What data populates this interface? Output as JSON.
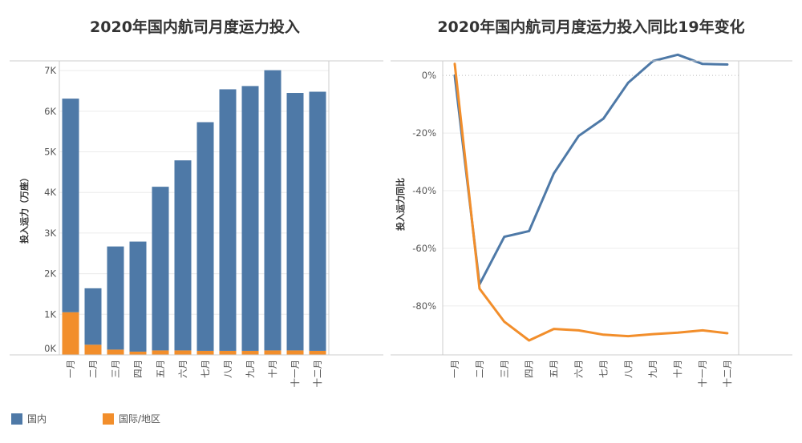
{
  "colors": {
    "domestic": "#4e79a7",
    "international": "#f28e2b",
    "grid": "#ececec",
    "axis": "#cccccc"
  },
  "legend": {
    "domestic": "国内",
    "international": "国际/地区"
  },
  "chart_data": [
    {
      "type": "bar",
      "stacked": true,
      "title": "2020年国内航司月度运力投入",
      "ylabel": "投入运力（万座）",
      "ylim": [
        0,
        7200
      ],
      "yticks": [
        0,
        1000,
        2000,
        3000,
        4000,
        5000,
        6000,
        7000
      ],
      "ytick_labels": [
        "0K",
        "1K",
        "2K",
        "3K",
        "4K",
        "5K",
        "6K",
        "7K"
      ],
      "categories": [
        "一月",
        "二月",
        "三月",
        "四月",
        "五月",
        "六月",
        "七月",
        "八月",
        "九月",
        "十月",
        "十一月",
        "十二月"
      ],
      "series": [
        {
          "name": "国际/地区",
          "values": [
            1050,
            250,
            130,
            80,
            110,
            110,
            100,
            100,
            100,
            110,
            110,
            100
          ]
        },
        {
          "name": "国内",
          "values": [
            5260,
            1390,
            2540,
            2710,
            4030,
            4680,
            5630,
            6440,
            6520,
            6900,
            6340,
            6380
          ]
        }
      ],
      "grid": true
    },
    {
      "type": "line",
      "title": "2020年国内航司月度运力投入同比19年变化",
      "ylabel": "投入运力同比",
      "ylim": [
        -0.97,
        0.045
      ],
      "yticks": [
        0,
        -0.2,
        -0.4,
        -0.6,
        -0.8
      ],
      "ytick_labels": [
        "0%",
        "-20%",
        "-40%",
        "-60%",
        "-80%"
      ],
      "categories": [
        "一月",
        "二月",
        "三月",
        "四月",
        "五月",
        "六月",
        "七月",
        "八月",
        "九月",
        "十月",
        "十一月",
        "十二月"
      ],
      "series": [
        {
          "name": "国内",
          "values": [
            0.0,
            -0.725,
            -0.56,
            -0.54,
            -0.34,
            -0.21,
            -0.15,
            -0.025,
            0.05,
            0.072,
            0.04,
            0.038
          ]
        },
        {
          "name": "国际/地区",
          "values": [
            0.04,
            -0.74,
            -0.855,
            -0.92,
            -0.88,
            -0.885,
            -0.9,
            -0.905,
            -0.898,
            -0.893,
            -0.885,
            -0.895
          ]
        }
      ],
      "grid": true
    }
  ]
}
